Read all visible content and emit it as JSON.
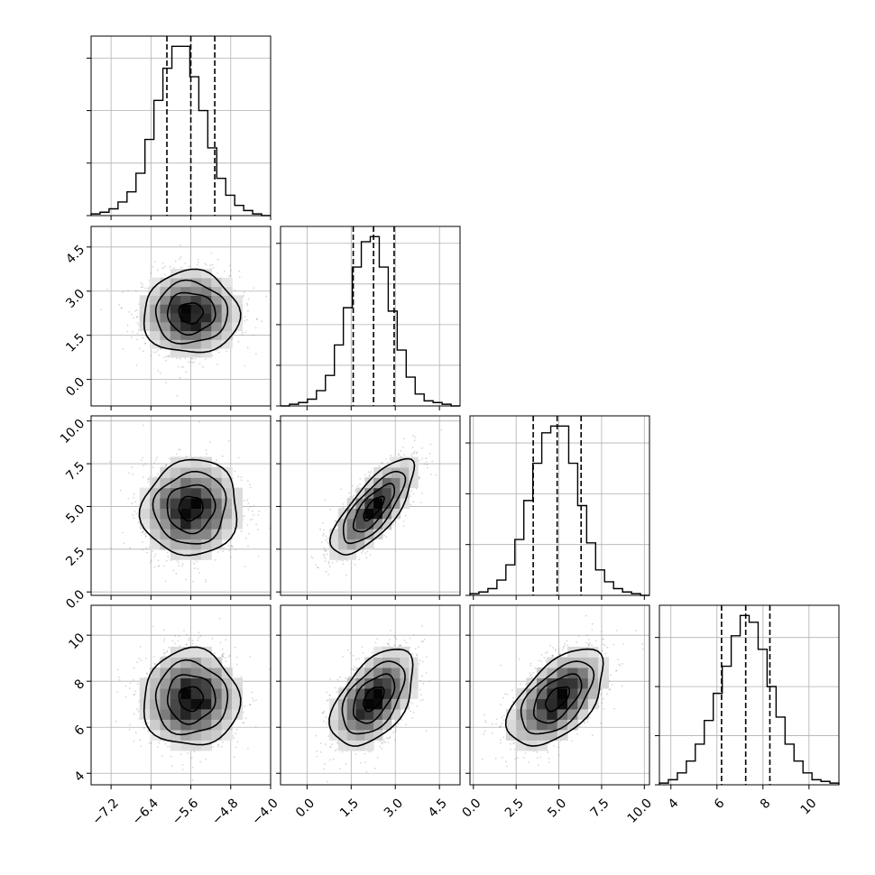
{
  "chart_data": {
    "type": "corner",
    "grid": true,
    "parameters": [
      {
        "index": 0,
        "range": [
          -7.6,
          -4.0
        ],
        "ticks": [
          "−7.2",
          "−6.4",
          "−5.6",
          "−4.8",
          "−4.0"
        ],
        "tick_values": [
          -7.2,
          -6.4,
          -5.6,
          -4.8,
          -4.0
        ],
        "mean": -5.6,
        "sd": 0.48,
        "quantiles": [
          -6.08,
          -5.6,
          -5.12
        ]
      },
      {
        "index": 1,
        "range": [
          -0.9,
          5.2
        ],
        "ticks": [
          "0.0",
          "1.5",
          "3.0",
          "4.5"
        ],
        "tick_values": [
          0.0,
          1.5,
          3.0,
          4.5
        ],
        "mean": 2.26,
        "sd": 0.7,
        "quantiles": [
          1.57,
          2.26,
          2.96
        ]
      },
      {
        "index": 2,
        "range": [
          -0.2,
          10.3
        ],
        "ticks": [
          "0.0",
          "2.5",
          "5.0",
          "7.5",
          "10.0"
        ],
        "tick_values": [
          0.0,
          2.5,
          5.0,
          7.5,
          10.0
        ],
        "mean": 4.9,
        "sd": 1.4,
        "quantiles": [
          3.5,
          4.9,
          6.3
        ]
      },
      {
        "index": 3,
        "range": [
          3.5,
          11.3
        ],
        "ticks": [
          "4",
          "6",
          "8",
          "10"
        ],
        "tick_values": [
          4,
          6,
          8,
          10
        ],
        "mean": 7.25,
        "sd": 1.05,
        "quantiles": [
          6.2,
          7.25,
          8.3
        ]
      }
    ],
    "histograms": [
      {
        "param": 0,
        "bins": 20,
        "counts": [
          1,
          2,
          4,
          8,
          14,
          25,
          45,
          68,
          87,
          100,
          100,
          82,
          62,
          40,
          22,
          12,
          6,
          3,
          1,
          0
        ],
        "ylim": [
          0,
          106
        ],
        "yticks": [
          0,
          31,
          62,
          93
        ]
      },
      {
        "param": 1,
        "bins": 20,
        "counts": [
          0,
          1,
          2,
          4,
          9,
          18,
          36,
          58,
          82,
          97,
          100,
          82,
          56,
          33,
          17,
          7,
          3,
          2,
          1,
          0
        ],
        "ylim": [
          0,
          106
        ],
        "yticks": [
          0,
          24,
          48,
          72,
          96
        ]
      },
      {
        "param": 2,
        "bins": 20,
        "counts": [
          1,
          2,
          4,
          9,
          18,
          33,
          56,
          78,
          96,
          100,
          100,
          78,
          53,
          31,
          15,
          8,
          4,
          2,
          1,
          0
        ],
        "ylim": [
          0,
          106
        ],
        "yticks": [
          0,
          30,
          60,
          90
        ]
      },
      {
        "param": 3,
        "bins": 20,
        "counts": [
          1,
          3,
          7,
          14,
          24,
          38,
          54,
          70,
          88,
          100,
          96,
          80,
          58,
          40,
          24,
          14,
          7,
          3,
          2,
          1
        ],
        "ylim": [
          0,
          106
        ],
        "yticks": [
          0,
          29,
          58,
          87
        ]
      }
    ],
    "pairs": [
      {
        "x": 0,
        "y": 1,
        "correlation": 0.0
      },
      {
        "x": 0,
        "y": 2,
        "correlation": 0.05
      },
      {
        "x": 1,
        "y": 2,
        "correlation": 0.75
      },
      {
        "x": 0,
        "y": 3,
        "correlation": 0.0
      },
      {
        "x": 1,
        "y": 3,
        "correlation": 0.5
      },
      {
        "x": 2,
        "y": 3,
        "correlation": 0.55
      }
    ],
    "contour_levels_sigma": [
      0.5,
      1.0,
      1.5,
      2.0
    ],
    "colors": {
      "ink": "#000000",
      "points": "#8a8a8a",
      "grid": "#b0b0b0"
    }
  }
}
